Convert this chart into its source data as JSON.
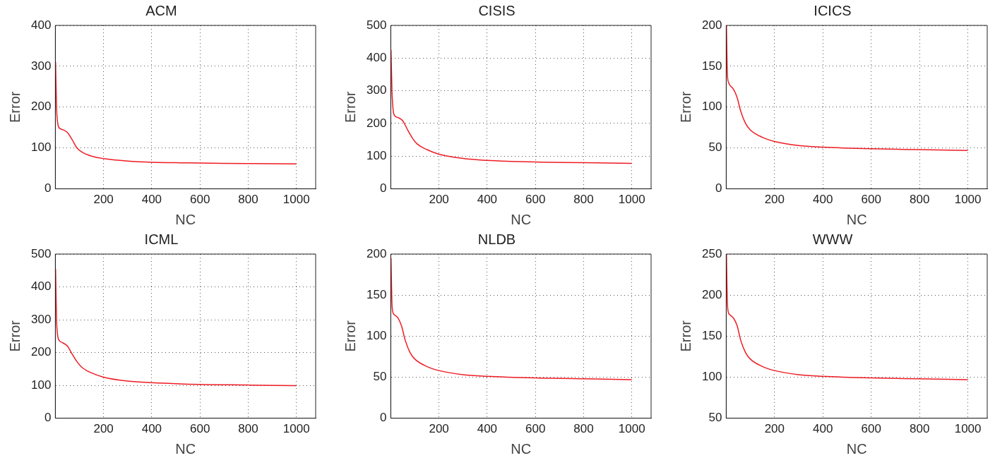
{
  "chart_data": [
    {
      "type": "line",
      "title": "ACM",
      "xlabel": "NC",
      "ylabel": "Error",
      "xlim": [
        0,
        1080
      ],
      "xticks": [
        200,
        400,
        600,
        800,
        1000
      ],
      "ylim": [
        0,
        400
      ],
      "yticks": [
        0,
        100,
        200,
        300,
        400
      ],
      "grid": true,
      "legend": false,
      "marker": "none",
      "line_style": "solid",
      "series": [
        {
          "color": "#ee1c24",
          "x": [
            1,
            5,
            10,
            15,
            30,
            50,
            70,
            90,
            110,
            150,
            200,
            300,
            400,
            500,
            600,
            800,
            1000
          ],
          "values": [
            310,
            200,
            160,
            150,
            145,
            138,
            120,
            100,
            90,
            80,
            74,
            68,
            65,
            64,
            63,
            62,
            61
          ]
        }
      ]
    },
    {
      "type": "line",
      "title": "CISIS",
      "xlabel": "NC",
      "ylabel": "Error",
      "xlim": [
        0,
        1080
      ],
      "xticks": [
        200,
        400,
        600,
        800,
        1000
      ],
      "ylim": [
        0,
        500
      ],
      "yticks": [
        0,
        100,
        200,
        300,
        400,
        500
      ],
      "grid": true,
      "legend": false,
      "marker": "none",
      "line_style": "solid",
      "series": [
        {
          "color": "#ee1c24",
          "x": [
            1,
            5,
            10,
            15,
            30,
            50,
            70,
            90,
            110,
            150,
            200,
            300,
            400,
            500,
            600,
            800,
            1000
          ],
          "values": [
            425,
            300,
            240,
            225,
            218,
            208,
            180,
            155,
            137,
            120,
            106,
            93,
            87,
            84,
            82,
            80,
            78
          ]
        }
      ]
    },
    {
      "type": "line",
      "title": "ICICS",
      "xlabel": "NC",
      "ylabel": "Error",
      "xlim": [
        0,
        1080
      ],
      "xticks": [
        200,
        400,
        600,
        800,
        1000
      ],
      "ylim": [
        0,
        200
      ],
      "yticks": [
        0,
        50,
        100,
        150,
        200
      ],
      "grid": true,
      "legend": false,
      "marker": "none",
      "line_style": "solid",
      "series": [
        {
          "color": "#ee1c24",
          "x": [
            1,
            5,
            10,
            15,
            30,
            45,
            60,
            80,
            100,
            150,
            200,
            300,
            400,
            600,
            800,
            1000
          ],
          "values": [
            200,
            140,
            130,
            127,
            122,
            112,
            95,
            80,
            72,
            63,
            58,
            53,
            51,
            49,
            48,
            47
          ]
        }
      ]
    },
    {
      "type": "line",
      "title": "ICML",
      "xlabel": "NC",
      "ylabel": "Error",
      "xlim": [
        0,
        1080
      ],
      "xticks": [
        200,
        400,
        600,
        800,
        1000
      ],
      "ylim": [
        0,
        500
      ],
      "yticks": [
        0,
        100,
        200,
        300,
        400,
        500
      ],
      "grid": true,
      "legend": false,
      "marker": "none",
      "line_style": "solid",
      "series": [
        {
          "color": "#ee1c24",
          "x": [
            1,
            5,
            10,
            15,
            30,
            50,
            70,
            90,
            110,
            150,
            200,
            300,
            400,
            600,
            800,
            1000
          ],
          "values": [
            455,
            300,
            250,
            238,
            230,
            220,
            195,
            172,
            155,
            138,
            125,
            113,
            108,
            103,
            101,
            99
          ]
        }
      ]
    },
    {
      "type": "line",
      "title": "NLDB",
      "xlabel": "NC",
      "ylabel": "Error",
      "xlim": [
        0,
        1080
      ],
      "xticks": [
        200,
        400,
        600,
        800,
        1000
      ],
      "ylim": [
        0,
        200
      ],
      "yticks": [
        0,
        50,
        100,
        150,
        200
      ],
      "grid": true,
      "legend": false,
      "marker": "none",
      "line_style": "solid",
      "series": [
        {
          "color": "#ee1c24",
          "x": [
            1,
            5,
            10,
            15,
            30,
            45,
            60,
            80,
            100,
            150,
            200,
            300,
            400,
            600,
            800,
            1000
          ],
          "values": [
            195,
            140,
            128,
            126,
            122,
            112,
            95,
            80,
            72,
            63,
            58,
            53,
            51,
            49,
            48,
            47
          ]
        }
      ]
    },
    {
      "type": "line",
      "title": "WWW",
      "xlabel": "NC",
      "ylabel": "Error",
      "xlim": [
        0,
        1080
      ],
      "xticks": [
        200,
        400,
        600,
        800,
        1000
      ],
      "ylim": [
        50,
        250
      ],
      "yticks": [
        50,
        100,
        150,
        200,
        250
      ],
      "grid": true,
      "legend": false,
      "marker": "none",
      "line_style": "solid",
      "series": [
        {
          "color": "#ee1c24",
          "x": [
            1,
            5,
            10,
            15,
            30,
            45,
            60,
            80,
            100,
            150,
            200,
            300,
            400,
            600,
            800,
            1000
          ],
          "values": [
            250,
            190,
            178,
            176,
            172,
            163,
            145,
            130,
            122,
            113,
            108,
            103,
            101,
            99,
            98,
            97
          ]
        }
      ]
    }
  ]
}
